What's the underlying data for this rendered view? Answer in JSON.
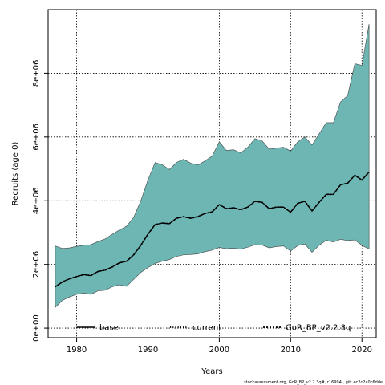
{
  "chart_data": {
    "type": "area",
    "xlabel": "Years",
    "ylabel": "Recruits (age 0)",
    "xlim": [
      1976,
      2022
    ],
    "ylim": [
      -300000,
      10000000
    ],
    "xticks": [
      {
        "value": 1980,
        "label": "1980"
      },
      {
        "value": 1990,
        "label": "1990"
      },
      {
        "value": 2000,
        "label": "2000"
      },
      {
        "value": 2010,
        "label": "2010"
      },
      {
        "value": 2020,
        "label": "2020"
      }
    ],
    "yticks": [
      {
        "value": 0,
        "label": "0e+00"
      },
      {
        "value": 2000000,
        "label": "2e+06"
      },
      {
        "value": 4000000,
        "label": "4e+06"
      },
      {
        "value": 6000000,
        "label": "6e+06"
      },
      {
        "value": 8000000,
        "label": "8e+06"
      }
    ],
    "grid": true,
    "x": [
      1977,
      1978,
      1979,
      1980,
      1981,
      1982,
      1983,
      1984,
      1985,
      1986,
      1987,
      1988,
      1989,
      1990,
      1991,
      1992,
      1993,
      1994,
      1995,
      1996,
      1997,
      1998,
      1999,
      2000,
      2001,
      2002,
      2003,
      2004,
      2005,
      2006,
      2007,
      2008,
      2009,
      2010,
      2011,
      2012,
      2013,
      2014,
      2015,
      2016,
      2017,
      2018,
      2019,
      2020,
      2021
    ],
    "series": [
      {
        "name": "base",
        "style": "solid",
        "values": [
          1300000,
          1450000,
          1550000,
          1620000,
          1680000,
          1650000,
          1780000,
          1820000,
          1920000,
          2050000,
          2100000,
          2300000,
          2600000,
          2950000,
          3250000,
          3300000,
          3280000,
          3450000,
          3500000,
          3450000,
          3500000,
          3600000,
          3650000,
          3880000,
          3750000,
          3780000,
          3720000,
          3800000,
          3980000,
          3950000,
          3750000,
          3800000,
          3800000,
          3640000,
          3920000,
          3980000,
          3680000,
          3950000,
          4200000,
          4200000,
          4500000,
          4550000,
          4800000,
          4650000,
          4900000
        ]
      },
      {
        "name": "current",
        "style": "dotted",
        "values": [
          1300000,
          1450000,
          1550000,
          1620000,
          1680000,
          1650000,
          1780000,
          1820000,
          1920000,
          2050000,
          2100000,
          2300000,
          2600000,
          2950000,
          3250000,
          3300000,
          3280000,
          3450000,
          3500000,
          3450000,
          3500000,
          3600000,
          3650000,
          3880000,
          3750000,
          3780000,
          3720000,
          3800000,
          3980000,
          3950000,
          3750000,
          3800000,
          3800000,
          3640000,
          3920000,
          3980000,
          3680000,
          3950000,
          4200000,
          4200000,
          4500000,
          4550000,
          4800000,
          4650000,
          4900000
        ]
      },
      {
        "name": "GoR_BP_v2.2.3q",
        "style": "dashed",
        "values": [
          1300000,
          1450000,
          1550000,
          1620000,
          1680000,
          1650000,
          1780000,
          1820000,
          1920000,
          2050000,
          2100000,
          2300000,
          2600000,
          2950000,
          3250000,
          3300000,
          3280000,
          3450000,
          3500000,
          3450000,
          3500000,
          3600000,
          3650000,
          3880000,
          3750000,
          3780000,
          3720000,
          3800000,
          3980000,
          3950000,
          3750000,
          3800000,
          3800000,
          3640000,
          3920000,
          3980000,
          3680000,
          3950000,
          4200000,
          4200000,
          4500000,
          4550000,
          4800000,
          4650000,
          4900000
        ],
        "band_upper": [
          2580000,
          2500000,
          2520000,
          2570000,
          2600000,
          2620000,
          2720000,
          2800000,
          2950000,
          3080000,
          3200000,
          3480000,
          4000000,
          4650000,
          5200000,
          5130000,
          4980000,
          5200000,
          5300000,
          5180000,
          5120000,
          5250000,
          5400000,
          5850000,
          5580000,
          5600000,
          5500000,
          5680000,
          5950000,
          5880000,
          5620000,
          5650000,
          5680000,
          5560000,
          5850000,
          6000000,
          5750000,
          6100000,
          6450000,
          6450000,
          7100000,
          7300000,
          8300000,
          8250000,
          9550000
        ],
        "band_lower": [
          650000,
          870000,
          980000,
          1060000,
          1100000,
          1060000,
          1170000,
          1190000,
          1300000,
          1360000,
          1310000,
          1530000,
          1750000,
          1900000,
          2030000,
          2100000,
          2150000,
          2250000,
          2300000,
          2310000,
          2330000,
          2400000,
          2450000,
          2530000,
          2490000,
          2510000,
          2480000,
          2540000,
          2620000,
          2610000,
          2520000,
          2560000,
          2580000,
          2420000,
          2590000,
          2640000,
          2380000,
          2600000,
          2760000,
          2700000,
          2790000,
          2750000,
          2770000,
          2600000,
          2480000
        ]
      }
    ],
    "legend": {
      "placement": "bottom",
      "entries": [
        {
          "label": "base",
          "style": "solid"
        },
        {
          "label": "current",
          "style": "dotted"
        },
        {
          "label": "GoR_BP_v2.2.3q",
          "style": "dashed"
        }
      ]
    },
    "colors": {
      "band_fill": "#6db6b4",
      "band_edge": "#444444",
      "line": "#000000",
      "grid": "#000000"
    }
  },
  "footnote": "stockassessment.org, GoR_BP_v2.2.3q#, r16994 , git: ec2c2a0c6dde"
}
